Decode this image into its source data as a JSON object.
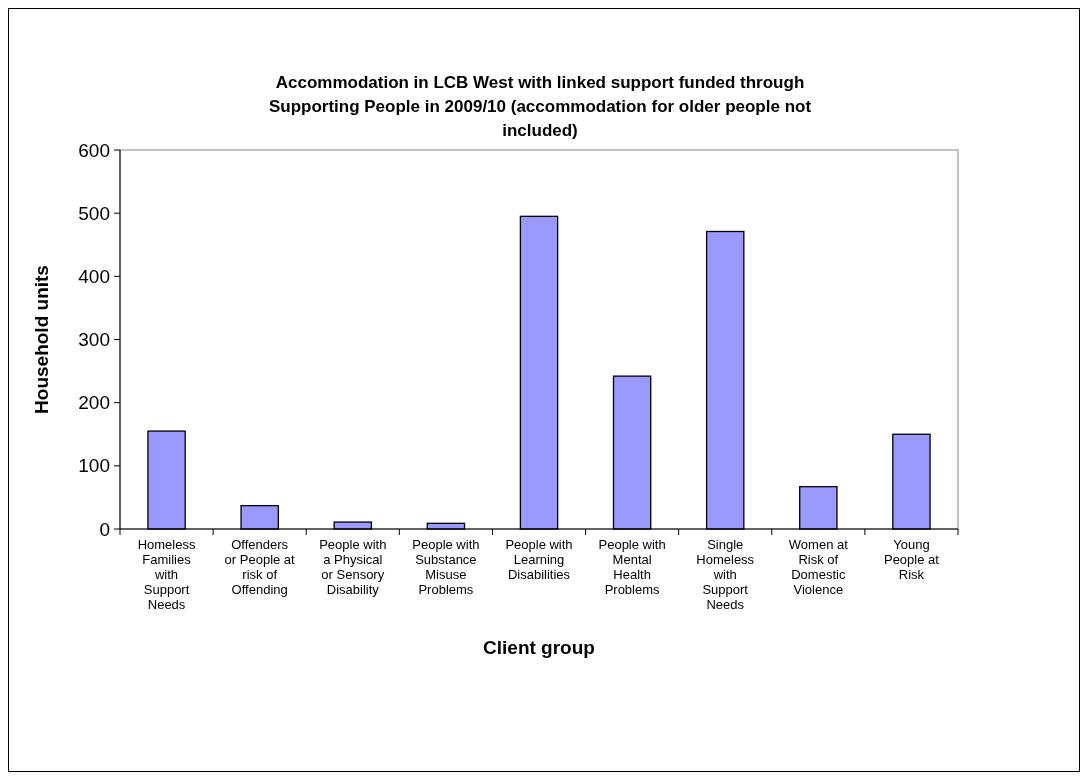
{
  "chart_data": {
    "type": "bar",
    "title": "Accommodation in LCB West with linked support funded through Supporting People in 2009/10 (accommodation for older people not included)",
    "xlabel": "Client group",
    "ylabel": "Household units",
    "categories": [
      "Homeless Families with Support Needs",
      "Offenders or People at risk of Offending",
      "People with a Physical or Sensory Disability",
      "People with Substance Misuse Problems",
      "People with Learning Disabilities",
      "People with Mental Health Problems",
      "Single Homeless with Support Needs",
      "Women at Risk of Domestic Violence",
      "Young People at Risk"
    ],
    "values": [
      155,
      37,
      11,
      9,
      495,
      242,
      471,
      67,
      150
    ],
    "color": "#9999ff",
    "ylim": [
      0,
      600
    ],
    "yticks": [
      0,
      100,
      200,
      300,
      400,
      500,
      600
    ],
    "grid": false
  }
}
